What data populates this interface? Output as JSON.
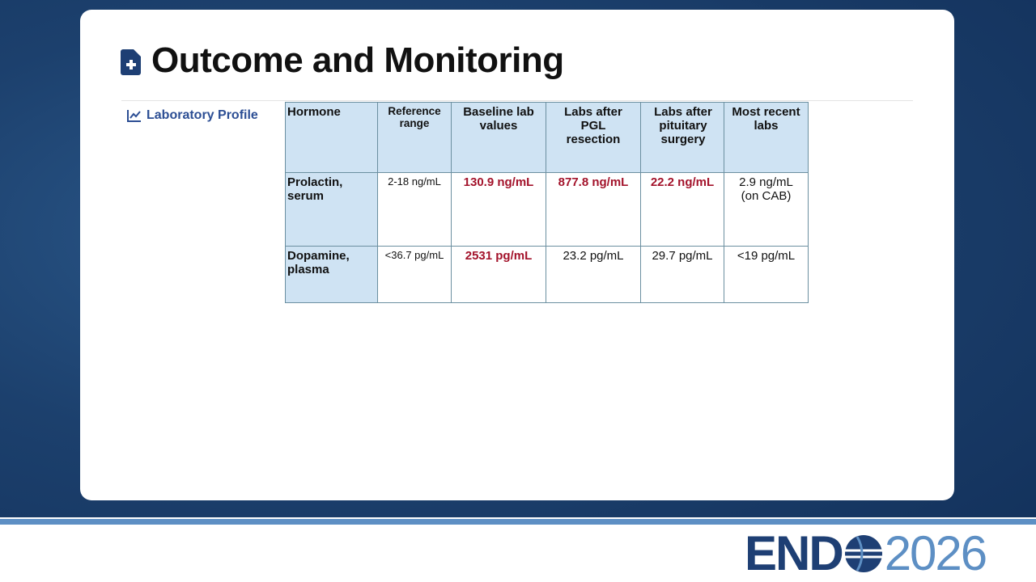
{
  "header": {
    "title": "Outcome and Monitoring"
  },
  "sidebar": {
    "label": "Laboratory Profile"
  },
  "table": {
    "columns": [
      "Hormone",
      "Reference range",
      "Baseline lab values",
      "Labs after PGL resection",
      "Labs after pituitary surgery",
      "Most recent labs"
    ],
    "rows": [
      [
        "Prolactin, serum",
        "2-18 ng/mL",
        "130.9 ng/mL",
        "877.8 ng/mL",
        "22.2 ng/mL",
        "2.9 ng/mL (on CAB)"
      ],
      [
        "Dopamine, plasma",
        "<36.7 pg/mL",
        "2531 pg/mL",
        "23.2 pg/mL",
        "29.7 pg/mL",
        "<19 pg/mL"
      ]
    ]
  },
  "logo": {
    "left": "END",
    "right": "2026"
  }
}
